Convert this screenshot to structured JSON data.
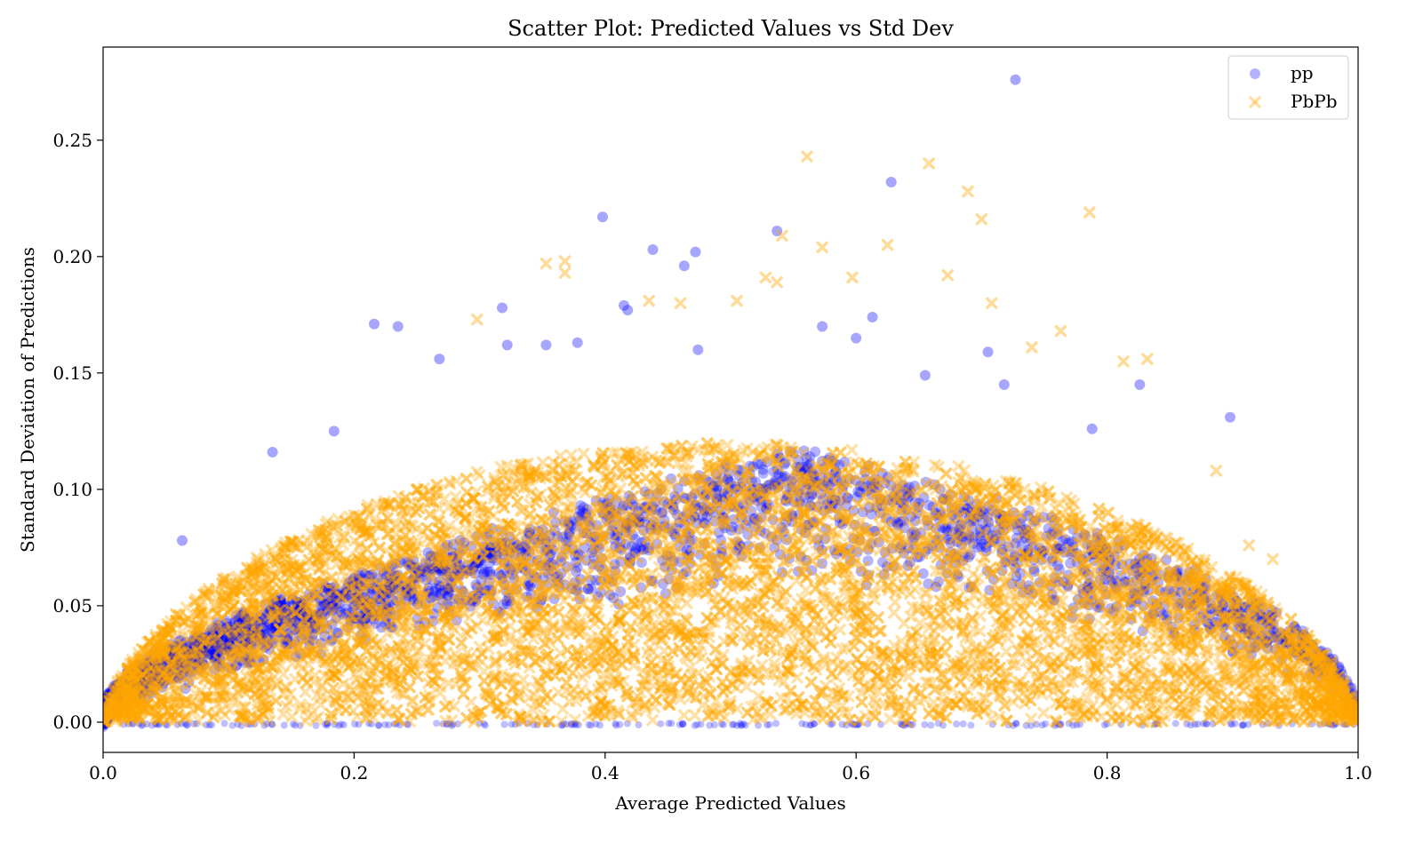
{
  "chart_data": {
    "type": "scatter",
    "title": "Scatter Plot: Predicted Values vs Std Dev",
    "xlabel": "Average Predicted Values",
    "ylabel": "Standard Deviation of Predictions",
    "xlim": [
      0.0,
      1.0
    ],
    "ylim": [
      -0.013,
      0.29
    ],
    "xticks": [
      0.0,
      0.2,
      0.4,
      0.6,
      0.8,
      1.0
    ],
    "xtick_labels": [
      "0.0",
      "0.2",
      "0.4",
      "0.6",
      "0.8",
      "1.0"
    ],
    "yticks": [
      0.0,
      0.05,
      0.1,
      0.15,
      0.2,
      0.25
    ],
    "ytick_labels": [
      "0.00",
      "0.05",
      "0.10",
      "0.15",
      "0.20",
      "0.25"
    ],
    "legend_position": "top-right",
    "series": [
      {
        "name": "pp",
        "marker": "circle",
        "color": "#0000ff",
        "outliers": [
          [
            0.727,
            0.276
          ],
          [
            0.398,
            0.217
          ],
          [
            0.628,
            0.232
          ],
          [
            0.537,
            0.211
          ],
          [
            0.438,
            0.203
          ],
          [
            0.472,
            0.202
          ],
          [
            0.463,
            0.196
          ],
          [
            0.415,
            0.179
          ],
          [
            0.418,
            0.177
          ],
          [
            0.216,
            0.171
          ],
          [
            0.235,
            0.17
          ],
          [
            0.318,
            0.178
          ],
          [
            0.613,
            0.174
          ],
          [
            0.573,
            0.17
          ],
          [
            0.898,
            0.131
          ],
          [
            0.826,
            0.145
          ],
          [
            0.378,
            0.163
          ],
          [
            0.353,
            0.162
          ],
          [
            0.322,
            0.162
          ],
          [
            0.474,
            0.16
          ],
          [
            0.705,
            0.159
          ],
          [
            0.063,
            0.078
          ],
          [
            0.184,
            0.125
          ],
          [
            0.135,
            0.116
          ],
          [
            0.268,
            0.156
          ],
          [
            0.6,
            0.165
          ],
          [
            0.655,
            0.149
          ],
          [
            0.718,
            0.145
          ],
          [
            0.788,
            0.126
          ]
        ]
      },
      {
        "name": "PbPb",
        "marker": "x",
        "color": "#ffa500",
        "outliers": [
          [
            0.561,
            0.243
          ],
          [
            0.658,
            0.24
          ],
          [
            0.786,
            0.219
          ],
          [
            0.689,
            0.228
          ],
          [
            0.7,
            0.216
          ],
          [
            0.541,
            0.209
          ],
          [
            0.573,
            0.204
          ],
          [
            0.625,
            0.205
          ],
          [
            0.353,
            0.197
          ],
          [
            0.368,
            0.198
          ],
          [
            0.368,
            0.193
          ],
          [
            0.597,
            0.191
          ],
          [
            0.528,
            0.191
          ],
          [
            0.537,
            0.189
          ],
          [
            0.673,
            0.192
          ],
          [
            0.505,
            0.181
          ],
          [
            0.435,
            0.181
          ],
          [
            0.46,
            0.18
          ],
          [
            0.708,
            0.18
          ],
          [
            0.298,
            0.173
          ],
          [
            0.763,
            0.168
          ],
          [
            0.74,
            0.161
          ],
          [
            0.813,
            0.155
          ],
          [
            0.832,
            0.156
          ],
          [
            0.887,
            0.108
          ],
          [
            0.913,
            0.076
          ],
          [
            0.932,
            0.07
          ]
        ]
      }
    ]
  }
}
